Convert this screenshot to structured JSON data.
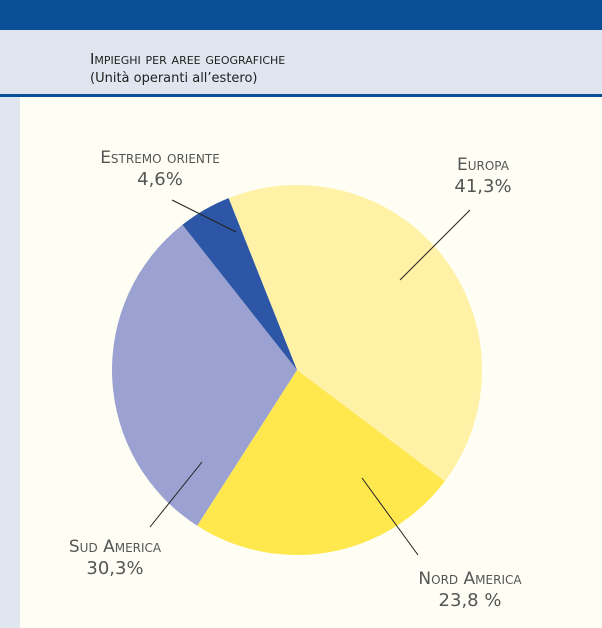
{
  "chart_data": {
    "type": "pie",
    "title": "Impieghi per aree geografiche",
    "subtitle": "(Unità operanti all’estero)",
    "categories": [
      "Europa",
      "Nord America",
      "Sud America",
      "Estremo oriente"
    ],
    "values": [
      41.3,
      23.8,
      30.3,
      4.6
    ],
    "value_labels": [
      "41,3%",
      "23,8 %",
      "30,3%",
      "4,6%"
    ],
    "colors": [
      "#fff2a6",
      "#ffe84e",
      "#9ba2d2",
      "#2d56a6"
    ]
  }
}
